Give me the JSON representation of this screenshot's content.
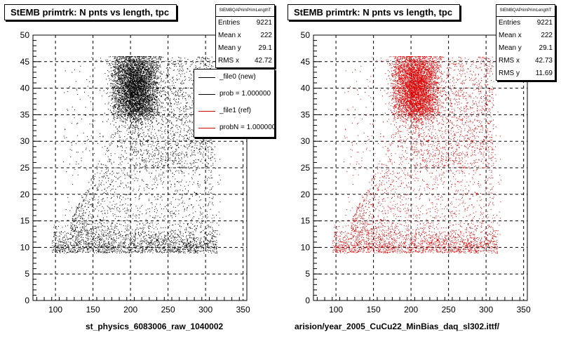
{
  "chart_data": [
    {
      "type": "scatter",
      "title": "StEMB primtrk: N pnts vs length, tpc",
      "xlabel": "st_physics_6083006_raw_1040002",
      "ylabel": "",
      "xlim": [
        70,
        355
      ],
      "ylim": [
        0,
        50
      ],
      "xticks": [
        100,
        150,
        200,
        250,
        300,
        350
      ],
      "yticks": [
        0,
        5,
        10,
        15,
        20,
        25,
        30,
        35,
        40,
        45,
        50
      ],
      "grid": true,
      "marker_color": "#000000",
      "stats": {
        "name": "StEMBQAPrimPrimLengthT",
        "rows": [
          {
            "label": "Entries",
            "value": "9221"
          },
          {
            "label": "Mean x",
            "value": "222"
          },
          {
            "label": "Mean y",
            "value": "29.1"
          },
          {
            "label": "RMS x",
            "value": "42.72"
          }
        ]
      },
      "legend": {
        "placement": "right",
        "entries": [
          {
            "label": "_file0 (new)",
            "color": "#000000"
          },
          {
            "label": "prob = 1.000000",
            "color": "#000000"
          },
          {
            "label": "_file1 (ref)",
            "color": "#cc0000"
          },
          {
            "label": "probN = 1.000000",
            "color": "#cc0000"
          }
        ]
      }
    },
    {
      "type": "scatter",
      "title": "StEMB primtrk: N pnts vs length, tpc",
      "xlabel": "arision/year_2005_CuCu22_MinBias_daq_sl302.ittf/",
      "ylabel": "",
      "xlim": [
        70,
        355
      ],
      "ylim": [
        0,
        50
      ],
      "xticks": [
        100,
        150,
        200,
        250,
        300,
        350
      ],
      "yticks": [
        0,
        5,
        10,
        15,
        20,
        25,
        30,
        35,
        40,
        45,
        50
      ],
      "grid": true,
      "marker_color": "#dd0000",
      "stats": {
        "name": "StEMBQAPrimPrimLengthT",
        "rows": [
          {
            "label": "Entries",
            "value": "9221"
          },
          {
            "label": "Mean x",
            "value": "222"
          },
          {
            "label": "Mean y",
            "value": "29.1"
          },
          {
            "label": "RMS x",
            "value": "42.73"
          },
          {
            "label": "RMS y",
            "value": "11.69"
          }
        ]
      }
    }
  ]
}
